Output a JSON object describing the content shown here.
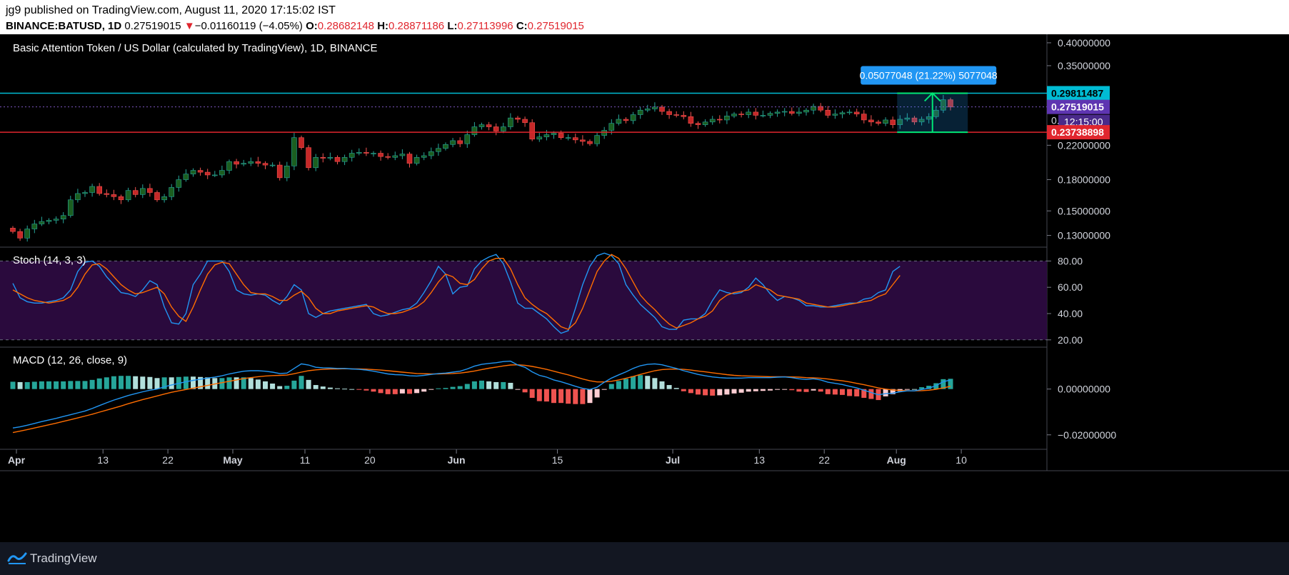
{
  "header": {
    "line1": "jg9 published on TradingView.com, August 11, 2020 17:15:02 IST",
    "symbol": "BINANCE:BATUSD, 1D",
    "last": "0.27519015",
    "change_arrow": "▼",
    "change": "−0.01160119 (−4.05%)",
    "o_label": "O:",
    "o_value": "0.28682148",
    "h_label": "H:",
    "h_value": "0.28871186",
    "l_label": "L:",
    "l_value": "0.27113996",
    "c_label": "C:",
    "c_value": "0.27519015"
  },
  "footer": {
    "brand": "TradingView"
  },
  "colors": {
    "background": "#000000",
    "grid": "#2a2e39",
    "up": "#1b5e20",
    "down": "#c62828",
    "resistance": "#00bcd4",
    "support": "#e0262e",
    "stoch_k": "#2196f3",
    "stoch_d": "#ff6d00",
    "stoch_band": "#2a0a3d",
    "macd": "#2196f3",
    "signal": "#ff6d00",
    "hist_up": "#26a69a",
    "hist_down": "#ef5350",
    "measure": "#00e676",
    "current_price_label": "#5e35b1"
  },
  "chart_data": [
    {
      "type": "candlestick",
      "title": "Basic Attention Token / US Dollar (calculated by TradingView), 1D, BINANCE",
      "scale": "log",
      "ylim": [
        0.125,
        0.41
      ],
      "y_ticks": [
        "0.40000000",
        "0.35000000",
        "0.22000000",
        "0.18000000",
        "0.15000000",
        "0.13000000"
      ],
      "x_ticks": [
        "Apr",
        "13",
        "22",
        "May",
        "11",
        "20",
        "Jun",
        "15",
        "Jul",
        "13",
        "22",
        "Aug",
        "10"
      ],
      "x_tick_days": [
        0,
        12,
        21,
        30,
        40,
        49,
        61,
        75,
        91,
        103,
        112,
        122,
        131
      ],
      "price_labels": {
        "resistance": "0.29811487",
        "last": "0.27519015",
        "countdown": "12:15:00",
        "support": "0.23738898",
        "partial": "0."
      },
      "levels": {
        "resistance": 0.29811487,
        "support": 0.23738898,
        "last": 0.27519015
      },
      "measure": {
        "label": "0.05077048 (21.22%) 5077048",
        "from": 0.2374,
        "to": 0.2981,
        "start_day": 123,
        "end_day": 132
      },
      "closes": [
        0.133,
        0.128,
        0.135,
        0.139,
        0.141,
        0.142,
        0.143,
        0.146,
        0.16,
        0.166,
        0.167,
        0.173,
        0.166,
        0.165,
        0.163,
        0.16,
        0.169,
        0.165,
        0.171,
        0.167,
        0.16,
        0.163,
        0.172,
        0.18,
        0.186,
        0.19,
        0.188,
        0.185,
        0.185,
        0.19,
        0.2,
        0.197,
        0.198,
        0.2,
        0.198,
        0.196,
        0.196,
        0.182,
        0.195,
        0.23,
        0.217,
        0.193,
        0.205,
        0.204,
        0.205,
        0.2,
        0.205,
        0.21,
        0.211,
        0.21,
        0.21,
        0.206,
        0.205,
        0.207,
        0.209,
        0.198,
        0.205,
        0.207,
        0.212,
        0.216,
        0.221,
        0.226,
        0.222,
        0.234,
        0.245,
        0.248,
        0.245,
        0.239,
        0.245,
        0.258,
        0.256,
        0.251,
        0.228,
        0.231,
        0.234,
        0.236,
        0.23,
        0.23,
        0.227,
        0.225,
        0.222,
        0.233,
        0.24,
        0.25,
        0.256,
        0.254,
        0.263,
        0.27,
        0.272,
        0.275,
        0.268,
        0.263,
        0.262,
        0.26,
        0.25,
        0.248,
        0.252,
        0.256,
        0.255,
        0.261,
        0.264,
        0.263,
        0.267,
        0.262,
        0.262,
        0.265,
        0.267,
        0.268,
        0.265,
        0.267,
        0.27,
        0.276,
        0.27,
        0.262,
        0.264,
        0.266,
        0.267,
        0.264,
        0.255,
        0.252,
        0.25,
        0.255,
        0.248,
        0.256,
        0.258,
        0.252,
        0.256,
        0.26,
        0.27,
        0.287,
        0.275
      ]
    },
    {
      "type": "line",
      "title": "Stoch (14, 3, 3)",
      "ylim": [
        15,
        90
      ],
      "y_ticks": [
        "80.00",
        "60.00",
        "40.00",
        "20.00"
      ],
      "band": [
        20,
        80
      ],
      "series": [
        {
          "values": [
            63,
            52,
            49,
            48,
            48,
            49,
            50,
            52,
            58,
            72,
            79,
            80,
            76,
            68,
            62,
            56,
            55,
            53,
            58,
            65,
            62,
            45,
            33,
            32,
            40,
            62,
            70,
            80,
            80,
            80,
            72,
            58,
            55,
            54,
            55,
            54,
            50,
            47,
            53,
            62,
            58,
            40,
            37,
            40,
            42,
            43,
            44,
            45,
            46,
            47,
            40,
            38,
            39,
            41,
            43,
            44,
            48,
            56,
            65,
            76,
            70,
            55,
            60,
            61,
            74,
            80,
            83,
            85,
            78,
            64,
            48,
            44,
            44,
            40,
            36,
            30,
            25,
            27,
            44,
            62,
            76,
            84,
            86,
            84,
            78,
            62,
            54,
            47,
            42,
            37,
            30,
            28,
            28,
            35,
            36,
            36,
            40,
            50,
            58,
            56,
            55,
            56,
            60,
            67,
            62,
            55,
            50,
            53,
            52,
            50,
            46,
            46,
            45,
            45,
            46,
            47,
            48,
            48,
            51,
            52,
            56,
            58,
            72,
            76
          ]
        },
        {
          "values": [
            58,
            55,
            52,
            50,
            49,
            48,
            49,
            50,
            53,
            60,
            70,
            77,
            78,
            74,
            68,
            62,
            58,
            55,
            56,
            58,
            60,
            55,
            45,
            38,
            34,
            45,
            58,
            70,
            77,
            79,
            78,
            70,
            62,
            56,
            55,
            55,
            53,
            50,
            50,
            54,
            57,
            52,
            44,
            40,
            40,
            42,
            43,
            44,
            45,
            46,
            45,
            42,
            40,
            40,
            41,
            43,
            45,
            49,
            56,
            64,
            70,
            68,
            63,
            62,
            66,
            74,
            80,
            82,
            82,
            74,
            62,
            52,
            47,
            43,
            40,
            35,
            30,
            28,
            33,
            44,
            58,
            72,
            80,
            85,
            82,
            74,
            64,
            54,
            48,
            43,
            37,
            32,
            29,
            31,
            33,
            36,
            38,
            42,
            50,
            54,
            56,
            57,
            58,
            62,
            60,
            58,
            54,
            53,
            52,
            51,
            48,
            47,
            46,
            45,
            45,
            46,
            47,
            48,
            49,
            50,
            53,
            55,
            62,
            69
          ]
        }
      ]
    },
    {
      "type": "bar+line",
      "title": "MACD (12, 26, close, 9)",
      "ylim": [
        -0.026,
        0.018
      ],
      "y_ticks": [
        "0.00000000",
        "−0.02000000"
      ],
      "y_tick_values": [
        0,
        -0.02
      ],
      "series": [
        {
          "values": [
            -0.017,
            -0.0165,
            -0.0158,
            -0.015,
            -0.0142,
            -0.0135,
            -0.0128,
            -0.012,
            -0.0112,
            -0.0104,
            -0.0096,
            -0.0085,
            -0.0072,
            -0.006,
            -0.0048,
            -0.0038,
            -0.0028,
            -0.002,
            -0.0012,
            -0.0005,
            0.0,
            0.001,
            0.0018,
            0.0025,
            0.0032,
            0.0038,
            0.0043,
            0.0048,
            0.0052,
            0.0058,
            0.0066,
            0.0072,
            0.0078,
            0.008,
            0.008,
            0.0078,
            0.0074,
            0.0068,
            0.007,
            0.009,
            0.011,
            0.0105,
            0.0095,
            0.0093,
            0.0092,
            0.009,
            0.009,
            0.0088,
            0.0086,
            0.0083,
            0.0078,
            0.0072,
            0.0066,
            0.0063,
            0.0062,
            0.0058,
            0.0057,
            0.006,
            0.0064,
            0.0068,
            0.007,
            0.0074,
            0.0078,
            0.0088,
            0.01,
            0.0108,
            0.0112,
            0.0115,
            0.012,
            0.0122,
            0.0105,
            0.0095,
            0.0075,
            0.006,
            0.0052,
            0.004,
            0.0032,
            0.0022,
            0.0012,
            0.0003,
            -0.0002,
            0.0008,
            0.003,
            0.0048,
            0.0062,
            0.0075,
            0.009,
            0.0102,
            0.0108,
            0.011,
            0.0106,
            0.0098,
            0.009,
            0.008,
            0.0072,
            0.0064,
            0.0058,
            0.0053,
            0.005,
            0.0048,
            0.0048,
            0.0048,
            0.005,
            0.005,
            0.005,
            0.005,
            0.0052,
            0.0053,
            0.005,
            0.0045,
            0.0042,
            0.0045,
            0.004,
            0.003,
            0.0025,
            0.002,
            0.0012,
            0.0005,
            -0.0005,
            -0.0015,
            -0.0025,
            -0.002,
            -0.0018,
            -0.0012,
            -0.0008,
            -0.0008,
            -0.0002,
            0.0004,
            0.0015,
            0.0032,
            0.004
          ]
        },
        {
          "values": [
            -0.019,
            -0.0184,
            -0.0177,
            -0.017,
            -0.0163,
            -0.0156,
            -0.0149,
            -0.0141,
            -0.0134,
            -0.0126,
            -0.0118,
            -0.011,
            -0.0101,
            -0.0092,
            -0.0083,
            -0.0074,
            -0.0064,
            -0.0055,
            -0.0046,
            -0.0038,
            -0.003,
            -0.0022,
            -0.0014,
            -0.0008,
            -0.0002,
            0.0004,
            0.001,
            0.0016,
            0.0022,
            0.0028,
            0.0034,
            0.004,
            0.0046,
            0.005,
            0.0054,
            0.0057,
            0.0059,
            0.006,
            0.0061,
            0.0067,
            0.0074,
            0.008,
            0.0084,
            0.0086,
            0.0088,
            0.0088,
            0.0089,
            0.0088,
            0.0088,
            0.0087,
            0.0085,
            0.0083,
            0.008,
            0.0077,
            0.0074,
            0.0071,
            0.0068,
            0.0067,
            0.0066,
            0.0066,
            0.0067,
            0.0068,
            0.007,
            0.0074,
            0.0079,
            0.0085,
            0.0091,
            0.0096,
            0.0101,
            0.0105,
            0.0106,
            0.0104,
            0.0099,
            0.0093,
            0.0086,
            0.0078,
            0.007,
            0.0062,
            0.0053,
            0.0044,
            0.0036,
            0.0031,
            0.0031,
            0.0034,
            0.004,
            0.0047,
            0.0055,
            0.0064,
            0.0072,
            0.008,
            0.0085,
            0.0087,
            0.0087,
            0.0086,
            0.0083,
            0.0079,
            0.0075,
            0.0071,
            0.0067,
            0.0063,
            0.006,
            0.0058,
            0.0057,
            0.0056,
            0.0055,
            0.0054,
            0.0054,
            0.0054,
            0.0053,
            0.0052,
            0.005,
            0.0049,
            0.0047,
            0.0044,
            0.004,
            0.0036,
            0.0031,
            0.0025,
            0.0019,
            0.0012,
            0.0005,
            0.0,
            -0.0004,
            -0.0006,
            -0.0007,
            -0.0008,
            -0.0007,
            -0.0005,
            -0.0001,
            0.0005,
            0.0012
          ]
        }
      ]
    }
  ]
}
